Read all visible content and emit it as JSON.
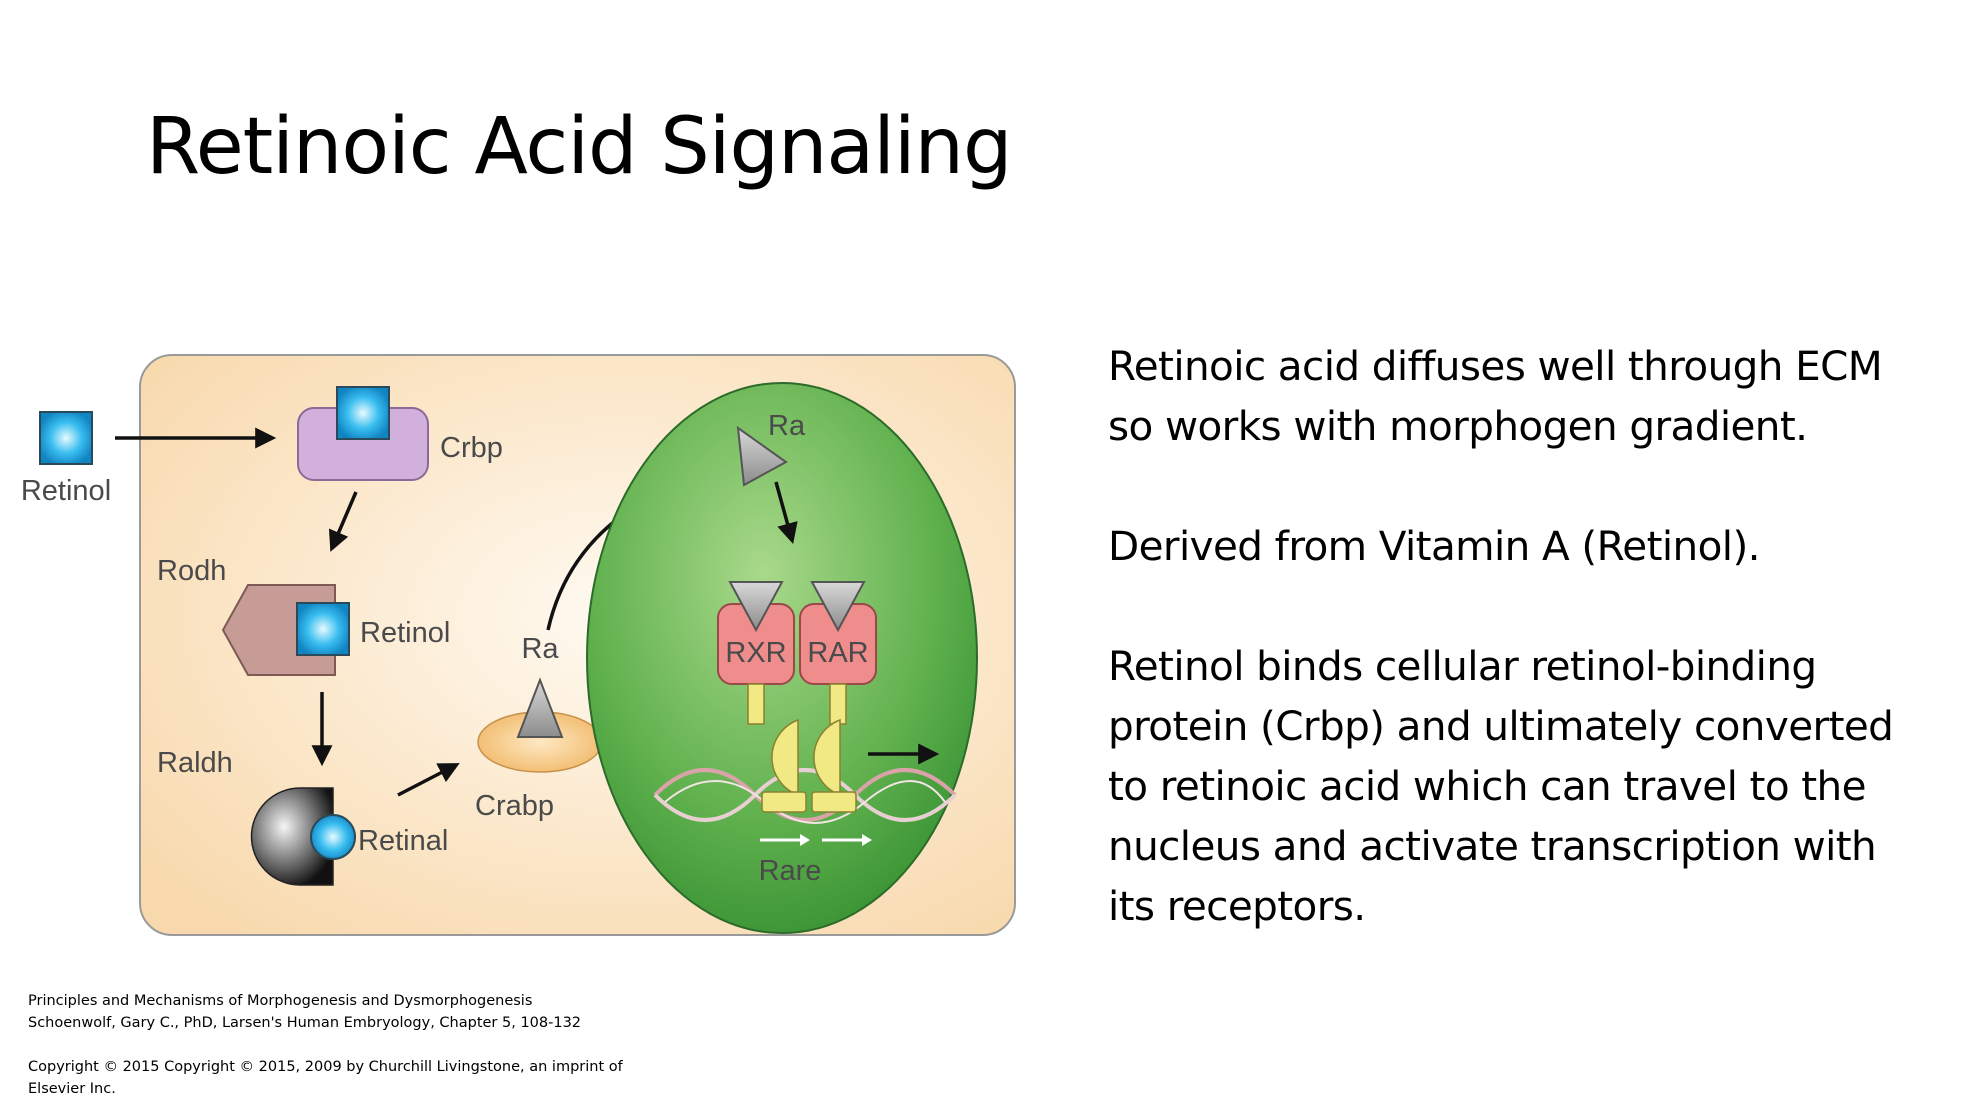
{
  "slide": {
    "title": "Retinoic Acid Signaling",
    "paragraphs": [
      "Retinoic acid diffuses well through ECM so works with morphogen gradient.",
      "Derived from Vitamin A (Retinol).",
      "Retinol binds cellular retinol-binding protein (Crbp) and ultimately converted to retinoic acid which can travel to the nucleus and activate transcription with its receptors."
    ],
    "citation": {
      "line1": "Principles and Mechanisms of Morphogenesis and Dysmorphogenesis",
      "line2": "Schoenwolf, Gary C., PhD, Larsen's Human Embryology, Chapter 5, 108-132",
      "line3": "Copyright ©  2015   Copyright © 2015, 2009 by Churchill Livingstone, an imprint of",
      "line4": "Elsevier Inc."
    }
  },
  "figure": {
    "labels": {
      "retinol_outside": "Retinol",
      "crbp": "Crbp",
      "rodh": "Rodh",
      "retinol_inside": "Retinol",
      "raldh": "Raldh",
      "retinal": "Retinal",
      "ra_cytoplasm": "Ra",
      "crabp": "Crabp",
      "ra_nucleus": "Ra",
      "rxr": "RXR",
      "rar": "RAR",
      "rare": "Rare"
    },
    "colors": {
      "cell": "#fbe3bf",
      "nucleus": "#5fb04d",
      "crbp": "#d2b0dc",
      "rodh": "#c79b96",
      "receptor": "#ef8c8c",
      "retinol_square": "#18a6de",
      "crabp_dish": "#f7c98a",
      "ligand_triangle": "#a8a8a8",
      "dna_binding": "#f1e984"
    }
  }
}
